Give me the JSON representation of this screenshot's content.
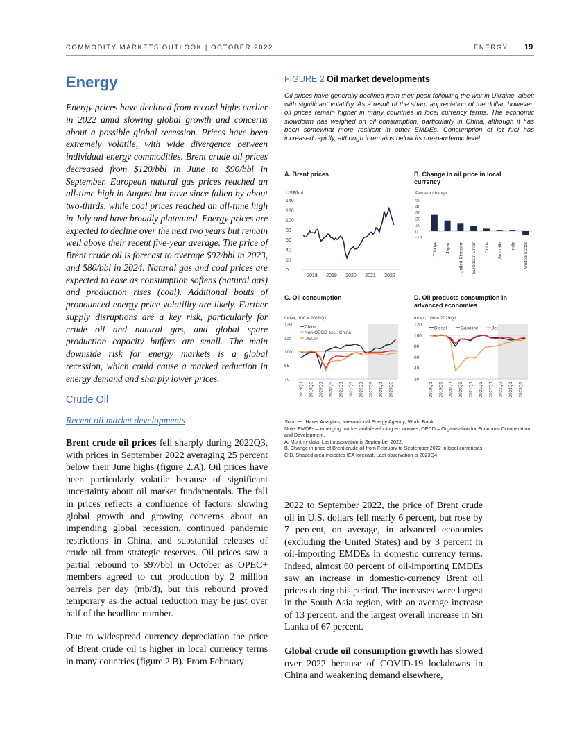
{
  "header": {
    "left": "COMMODITY MARKETS OUTLOOK | OCTOBER 2022",
    "section": "ENERGY",
    "page_number": "19"
  },
  "title": "Energy",
  "intro": "Energy prices have declined from record highs earlier in 2022 amid slowing global growth and concerns about a possible global recession. Prices have been extremely volatile, with wide divergence between individual energy commodities. Brent crude oil prices decreased from $120/bbl in June to $90/bbl in September. European natural gas prices reached an all-time high in August but have since fallen by about two-thirds, while coal prices reached an all-time high in July and have broadly plateaued. Energy prices are expected to decline over the next two years but remain well above their recent five-year average. The price of Brent crude oil is forecast to average $92/bbl in 2023, and $80/bbl in 2024. Natural gas and coal prices are expected to ease as consumption softens (natural gas) and production rises (coal). Additional bouts of pronounced energy price volatility are likely. Further supply disruptions are a key risk, particularly for crude oil and natural gas, and global spare production capacity buffers are small. The main downside risk for energy markets is a global recession, which could cause a marked reduction in energy demand and sharply lower prices.",
  "section_heading": "Crude Oil",
  "subsection_heading": "Recent oil market developments",
  "para1_bold": "Brent crude oil prices",
  "para1": " fell sharply during 2022Q3, with prices in September 2022 averaging 25 percent below their June highs (figure 2.A). Oil prices have been particularly volatile because of significant uncertainty about oil market fundamentals. The fall in prices reflects a confluence of factors: slowing global growth and growing concerns about an impending global recession, continued pandemic restrictions in China, and substantial releases of crude oil from strategic reserves. Oil prices saw a partial rebound to $97/bbl in October as OPEC+ members agreed to cut production by 2 million barrels per day (mb/d), but this rebound proved temporary as the actual reduction may be just over half of the headline number.",
  "para2": "Due to widespread currency depreciation the price of Brent crude oil is higher in local currency terms in many countries (figure 2.B). From February",
  "para2_cont": "2022 to September 2022, the price of Brent crude oil in U.S. dollars fell nearly 6 percent, but rose by 7 percent, on average, in advanced economies (excluding the United States) and by 3 percent in oil-importing EMDEs in domestic currency terms. Indeed, almost 60 percent of oil-importing EMDEs saw an increase in domestic-currency Brent oil prices during this period. The increases were largest in the South Asia region, with an average increase of 13 percent, and the largest overall increase in Sri Lanka of 67 percent.",
  "para3_bold": "Global crude oil consumption growth",
  "para3": " has slowed over 2022 because of COVID-19 lockdowns in China and weakening demand elsewhere,",
  "figure": {
    "number": "FIGURE 2",
    "title": "Oil market developments",
    "description": "Oil prices have generally declined from their peak following the war in Ukraine, albeit with significant volatility. As a result of the sharp appreciation of the dollar, however, oil prices remain higher in many countries in local currency terms. The economic slowdown has weighed on oil consumption, particularly in China, although it has been somewhat more resilient in other EMDEs. Consumption of jet fuel has increased rapidly, although it remains below its pre-pandemic level.",
    "sources_label": "Sources",
    "sources": ": Haver Analytics; International Energy Agency; World Bank.",
    "notes": [
      "Note: EMDEs = emerging market and developing economies; OECD = Organisation for Economic Co-operation and Development.",
      "A. Monthly data. Last observation is September 2022.",
      "B. Change in price of Brent crude oil from February to September 2022 in local currencies.",
      "C.D. Shaded area indicates IEA forecast. Last observation is 2023Q4."
    ]
  },
  "chart_data": [
    {
      "type": "line",
      "title": "A. Brent prices",
      "ylabel": "US$/bbl",
      "ylim": [
        0,
        140
      ],
      "yticks": [
        0,
        20,
        40,
        60,
        80,
        100,
        120,
        140
      ],
      "xticks": [
        "2018",
        "2019",
        "2020",
        "2021",
        "2022"
      ],
      "frequency": "monthly",
      "start": "2018-01",
      "series": [
        {
          "color": "#1b2a4a",
          "values": [
            69,
            65,
            66,
            72,
            77,
            74,
            74,
            73,
            79,
            81,
            65,
            57,
            60,
            64,
            66,
            71,
            71,
            64,
            64,
            59,
            63,
            60,
            63,
            67,
            64,
            55,
            33,
            23,
            31,
            40,
            43,
            45,
            41,
            41,
            44,
            50,
            55,
            62,
            65,
            65,
            68,
            73,
            75,
            71,
            74,
            84,
            81,
            75,
            87,
            97,
            117,
            105,
            113,
            123,
            112,
            100,
            90
          ]
        }
      ]
    },
    {
      "type": "bar",
      "title": "B. Change in oil price in local currency",
      "ylabel": "Percent change",
      "ylim": [
        -10,
        50
      ],
      "yticks": [
        -10,
        0,
        10,
        20,
        30,
        40,
        50
      ],
      "categories": [
        "Türkiye",
        "Japan",
        "United Kingdom",
        "European Union",
        "China",
        "Australia",
        "India",
        "United States"
      ],
      "values": [
        26,
        17,
        13,
        8,
        4,
        1,
        1,
        -6
      ],
      "color": "#1b2a4a"
    },
    {
      "type": "line",
      "title": "C. Oil consumption",
      "ylabel": "Index, 100 = 2019Q1",
      "ylim": [
        70,
        130
      ],
      "yticks": [
        70,
        85,
        100,
        115,
        130
      ],
      "reference_line": 100,
      "categories": [
        "2019Q1",
        "2019Q2",
        "2019Q3",
        "2019Q4",
        "2020Q1",
        "2020Q2",
        "2020Q3",
        "2020Q4",
        "2021Q1",
        "2021Q2",
        "2021Q3",
        "2021Q4",
        "2022Q1",
        "2022Q2",
        "2022Q3",
        "2022Q4",
        "2023Q1",
        "2023Q2",
        "2023Q3",
        "2023Q4"
      ],
      "xticks": [
        "2019Q1",
        "2019Q3",
        "2020Q1",
        "2020Q3",
        "2021Q1",
        "2021Q3",
        "2022Q1",
        "2022Q3",
        "2023Q1",
        "2023Q3"
      ],
      "forecast_from": "2022Q3",
      "legend": "top-left",
      "series": [
        {
          "name": "China",
          "color": "#1b2a4a",
          "values": [
            93,
            97,
            99,
            100,
            83,
            101,
            103,
            105,
            103,
            107,
            107,
            108,
            106,
            98,
            100,
            104,
            103,
            107,
            108,
            113
          ]
        },
        {
          "name": "Non-OECD excl. China",
          "color": "#e3263a",
          "values": [
            99,
            99,
            100,
            99,
            92,
            82,
            92,
            95,
            95,
            94,
            97,
            99,
            98,
            99,
            99,
            99,
            99,
            100,
            101,
            101
          ]
        },
        {
          "name": "OECD",
          "color": "#f5a04a",
          "values": [
            100,
            99,
            101,
            100,
            94,
            79,
            89,
            90,
            90,
            93,
            96,
            99,
            97,
            96,
            98,
            98,
            97,
            96,
            98,
            98
          ]
        }
      ]
    },
    {
      "type": "line",
      "title": "D. Oil products consumption in advanced economies",
      "ylabel": "Index, 100 = 2019Q1",
      "ylim": [
        20,
        120
      ],
      "yticks": [
        20,
        40,
        60,
        80,
        100,
        120
      ],
      "reference_line": 100,
      "categories": [
        "2019Q1",
        "2019Q2",
        "2019Q3",
        "2019Q4",
        "2020Q1",
        "2020Q2",
        "2020Q3",
        "2020Q4",
        "2021Q1",
        "2021Q2",
        "2021Q3",
        "2021Q4",
        "2022Q1",
        "2022Q2",
        "2022Q3",
        "2022Q4",
        "2023Q1",
        "2023Q2",
        "2023Q3",
        "2023Q4"
      ],
      "xticks": [
        "2019Q1",
        "2019Q3",
        "2020Q1",
        "2020Q3",
        "2021Q1",
        "2021Q3",
        "2022Q1",
        "2022Q3",
        "2023Q1",
        "2023Q3"
      ],
      "forecast_from": "2022Q3",
      "legend": "top",
      "series": [
        {
          "name": "Diesel",
          "color": "#1b2a4a",
          "values": [
            100,
            99,
            100,
            99,
            93,
            80,
            93,
            93,
            90,
            96,
            99,
            100,
            95,
            95,
            95,
            93,
            91,
            92,
            93,
            94
          ]
        },
        {
          "name": "Gasoline",
          "color": "#e3263a",
          "values": [
            100,
            97,
            101,
            99,
            95,
            85,
            93,
            92,
            92,
            97,
            100,
            99,
            96,
            93,
            95,
            96,
            95,
            91,
            94,
            96
          ]
        },
        {
          "name": "Jet",
          "color": "#f5a04a",
          "values": [
            99,
            98,
            101,
            99,
            90,
            35,
            45,
            57,
            60,
            58,
            70,
            78,
            79,
            80,
            82,
            86,
            87,
            91,
            90,
            93
          ]
        }
      ]
    }
  ]
}
